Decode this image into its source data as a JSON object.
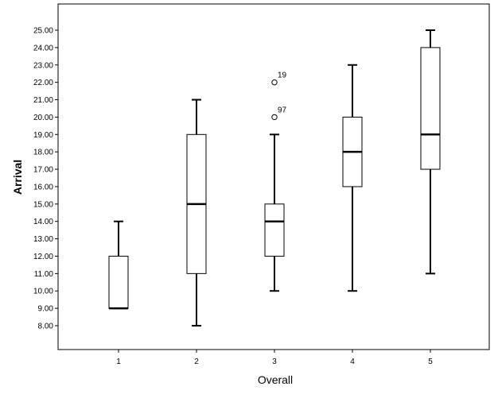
{
  "chart_data": {
    "type": "boxplot",
    "title": "",
    "xlabel": "Overall",
    "ylabel": "Arrival",
    "categories": [
      "1",
      "2",
      "3",
      "4",
      "5"
    ],
    "yticks": [
      "8.00",
      "9.00",
      "10.00",
      "11.00",
      "12.00",
      "13.00",
      "14.00",
      "15.00",
      "16.00",
      "17.00",
      "18.00",
      "19.00",
      "20.00",
      "21.00",
      "22.00",
      "23.00",
      "24.00",
      "25.00"
    ],
    "ylim": [
      6.5,
      26.5
    ],
    "grid": false,
    "boxes": [
      {
        "category": "1",
        "min": 9,
        "q1": 9,
        "median": 9,
        "q3": 12,
        "max": 14,
        "outliers": []
      },
      {
        "category": "2",
        "min": 8,
        "q1": 11,
        "median": 15,
        "q3": 19,
        "max": 21,
        "outliers": []
      },
      {
        "category": "3",
        "min": 10,
        "q1": 12,
        "median": 14,
        "q3": 15,
        "max": 19,
        "outliers": [
          {
            "value": 20,
            "label": "97"
          },
          {
            "value": 22,
            "label": "19"
          }
        ]
      },
      {
        "category": "4",
        "min": 10,
        "q1": 16,
        "median": 18,
        "q3": 20,
        "max": 23,
        "outliers": []
      },
      {
        "category": "5",
        "min": 11,
        "q1": 17,
        "median": 19,
        "q3": 24,
        "max": 25,
        "outliers": []
      }
    ]
  }
}
